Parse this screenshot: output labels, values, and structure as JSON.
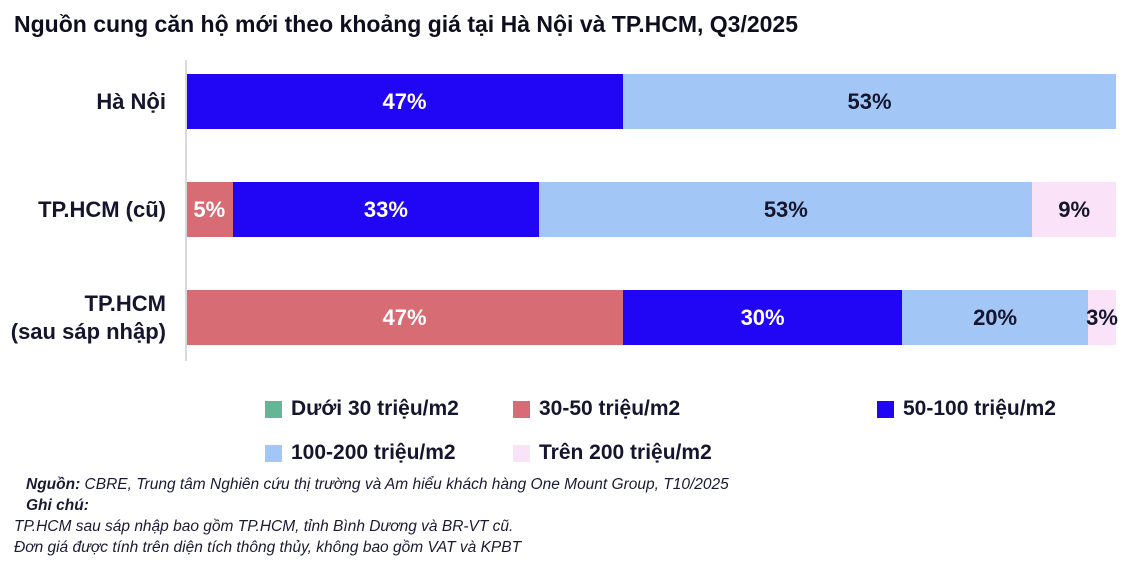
{
  "title": "Nguồn cung căn hộ mới theo khoảng giá tại Hà Nội và TP.HCM, Q3/2025",
  "chart_data": {
    "type": "bar",
    "variant": "horizontal-stacked",
    "unit": "%",
    "xlim": [
      0,
      100
    ],
    "grid": false,
    "legend_position": "bottom",
    "categories": [
      "Hà Nội",
      "TP.HCM (cũ)",
      "TP.HCM\n(sau sáp nhập)"
    ],
    "series": [
      {
        "name": "Dưới 30 triệu/m2",
        "color": "#64B795",
        "label_color": "#FFFFFF",
        "values": [
          0,
          0,
          0
        ]
      },
      {
        "name": "30-50 triệu/m2",
        "color": "#D76C74",
        "label_color": "#FFFFFF",
        "values": [
          0,
          5,
          47
        ]
      },
      {
        "name": "50-100 triệu/m2",
        "color": "#2106F6",
        "label_color": "#FFFFFF",
        "values": [
          47,
          33,
          30
        ]
      },
      {
        "name": "100-200 triệu/m2",
        "color": "#A2C7F6",
        "label_color": "#15152D",
        "values": [
          53,
          53,
          20
        ]
      },
      {
        "name": "Trên 200 triệu/m2",
        "color": "#FAE3F8",
        "label_color": "#15152D",
        "values": [
          0,
          9,
          3
        ]
      }
    ]
  },
  "footer": {
    "source_label": "Nguồn:",
    "source_text": "CBRE, Trung tâm Nghiên cứu  thị trường và Am hiểu khách hàng One Mount Group, T10/2025",
    "notes_label": "Ghi chú:",
    "notes": [
      "TP.HCM sau sáp nhập  bao gồm TP.HCM, tỉnh Bình Dương và BR-VT cũ.",
      "Đơn giá được tính trên diện tích thông thủy, không bao gồm VAT và KPBT"
    ]
  },
  "colors": {
    "accent_blue": "#2106F6",
    "rose": "#D76C74",
    "light_blue": "#A2C7F6",
    "pale_pink": "#FAE3F8",
    "green": "#64B795",
    "text_dark": "#15152D",
    "axis_gray": "#D9D9D9"
  }
}
